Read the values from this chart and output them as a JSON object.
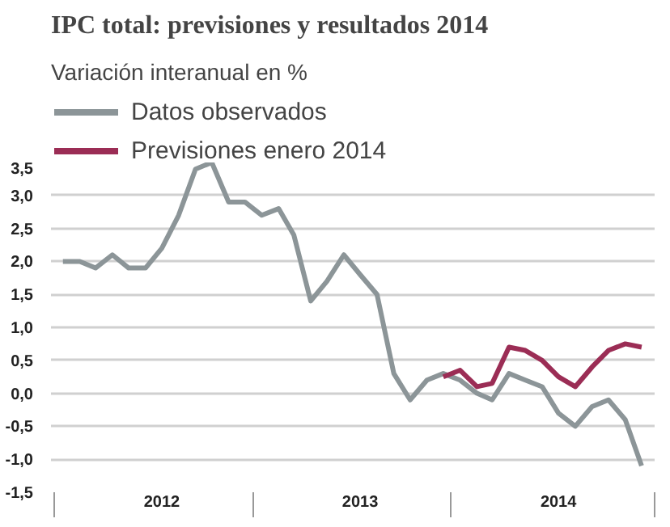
{
  "chart_data": {
    "type": "line",
    "title": "IPC total: previsiones y resultados 2014",
    "subtitle": "Variación  interanual en %",
    "series": [
      {
        "name": "Datos observados",
        "color": "#8c9598",
        "x": [
          "2012-01",
          "2012-02",
          "2012-03",
          "2012-04",
          "2012-05",
          "2012-06",
          "2012-07",
          "2012-08",
          "2012-09",
          "2012-10",
          "2012-11",
          "2012-12",
          "2013-01",
          "2013-02",
          "2013-03",
          "2013-04",
          "2013-05",
          "2013-06",
          "2013-07",
          "2013-08",
          "2013-09",
          "2013-10",
          "2013-11",
          "2013-12",
          "2014-01",
          "2014-02",
          "2014-03",
          "2014-04",
          "2014-05",
          "2014-06",
          "2014-07",
          "2014-08",
          "2014-09",
          "2014-10",
          "2014-11",
          "2014-12"
        ],
        "values": [
          2.0,
          2.0,
          1.9,
          2.1,
          1.9,
          1.9,
          2.2,
          2.7,
          3.4,
          3.5,
          2.9,
          2.9,
          2.7,
          2.8,
          2.4,
          1.4,
          1.7,
          2.1,
          1.8,
          1.5,
          0.3,
          -0.1,
          0.2,
          0.3,
          0.2,
          0.0,
          -0.1,
          0.3,
          0.2,
          0.1,
          -0.3,
          -0.5,
          -0.2,
          -0.1,
          -0.4,
          -1.1
        ]
      },
      {
        "name": "Previsiones enero 2014",
        "color": "#9b2d55",
        "x": [
          "2013-12",
          "2014-01",
          "2014-02",
          "2014-03",
          "2014-04",
          "2014-05",
          "2014-06",
          "2014-07",
          "2014-08",
          "2014-09",
          "2014-10",
          "2014-11",
          "2014-12"
        ],
        "values": [
          0.25,
          0.35,
          0.1,
          0.15,
          0.7,
          0.65,
          0.5,
          0.25,
          0.1,
          0.4,
          0.65,
          0.75,
          0.7
        ]
      }
    ],
    "xlim": [
      "2011-12-10",
      "2014-12-25"
    ],
    "xticks": [
      {
        "value": "2011-12-16",
        "label": null
      },
      {
        "value": "2012-07-01",
        "label": "2012"
      },
      {
        "value": "2012-12-16",
        "label": null
      },
      {
        "value": "2013-07-01",
        "label": "2013"
      },
      {
        "value": "2013-12-16",
        "label": null
      },
      {
        "value": "2014-07-01",
        "label": "2014"
      },
      {
        "value": "2014-12-25",
        "label": null
      }
    ],
    "ylim": [
      -1.5,
      3.5
    ],
    "yticks": [
      {
        "value": 3.5,
        "label": "3,5"
      },
      {
        "value": 3.0,
        "label": "3,0"
      },
      {
        "value": 2.5,
        "label": "2,5"
      },
      {
        "value": 2.0,
        "label": "2,0"
      },
      {
        "value": 1.5,
        "label": "1,5"
      },
      {
        "value": 1.0,
        "label": "1,0"
      },
      {
        "value": 0.5,
        "label": "0,5"
      },
      {
        "value": 0.0,
        "label": "0,0"
      },
      {
        "value": -0.5,
        "label": "-0,5"
      },
      {
        "value": -1.0,
        "label": "-1,0"
      },
      {
        "value": -1.5,
        "label": "-1,5"
      }
    ],
    "grid": "y",
    "legend": "top left",
    "line_style": "solid",
    "marker": "none"
  }
}
